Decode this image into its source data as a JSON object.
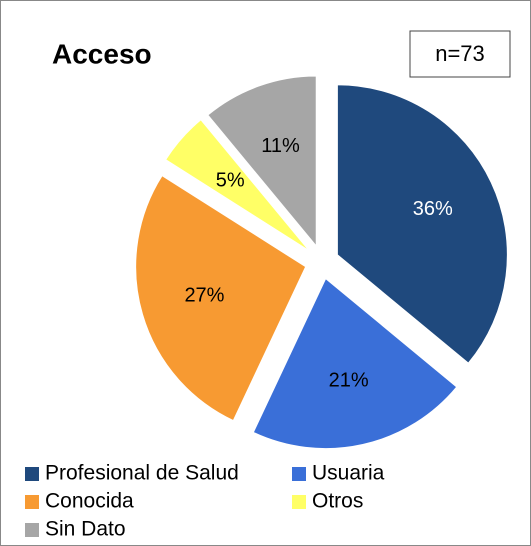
{
  "chart_data": {
    "type": "pie",
    "title": "Acceso",
    "annotation": "n=73",
    "categories": [
      "Profesional de Salud",
      "Usuaria",
      "Conocida",
      "Otros",
      "Sin Dato"
    ],
    "values": [
      36,
      21,
      27,
      5,
      11
    ],
    "value_labels": [
      "36%",
      "21%",
      "27%",
      "5%",
      "11%"
    ],
    "colors": [
      "#1f497d",
      "#3a6fd8",
      "#f79a32",
      "#ffff66",
      "#a6a6a6"
    ],
    "legend": "bottom"
  }
}
